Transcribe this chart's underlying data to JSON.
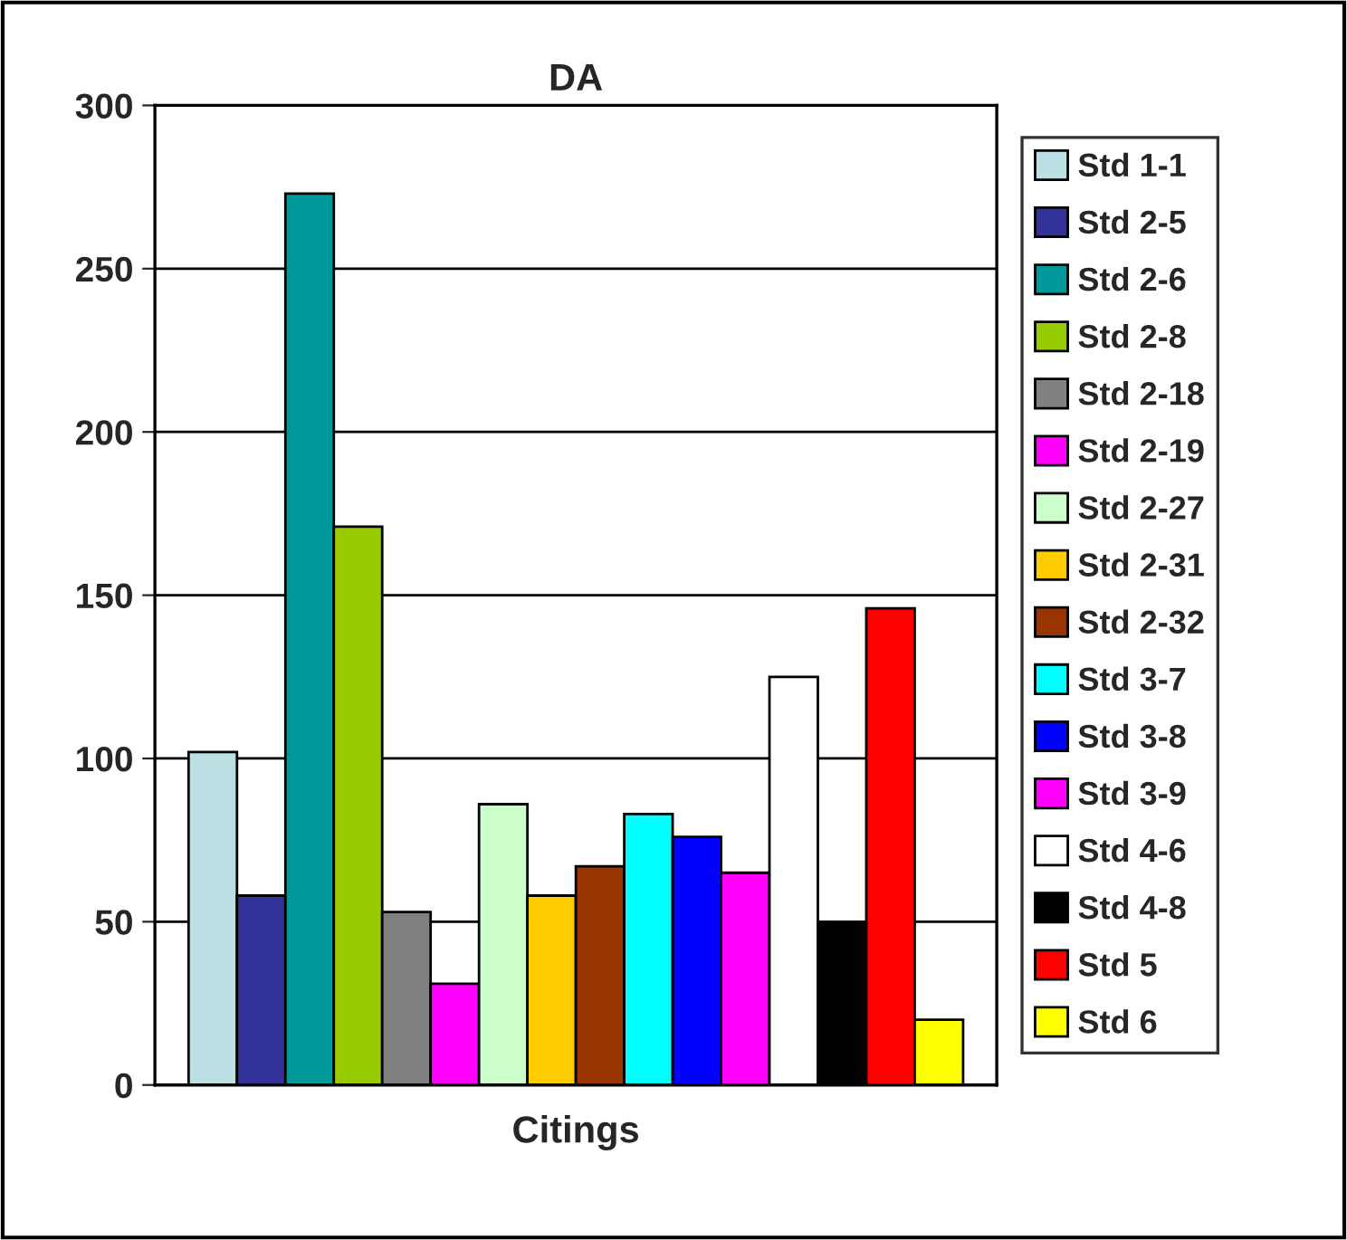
{
  "chart_data": {
    "type": "bar",
    "title": "DA",
    "categories": [
      "Citings"
    ],
    "series": [
      {
        "name": "Std 1-1",
        "color": "#bbe0e3",
        "values": [
          102
        ]
      },
      {
        "name": "Std 2-5",
        "color": "#333399",
        "values": [
          58
        ]
      },
      {
        "name": "Std 2-6",
        "color": "#009999",
        "values": [
          273
        ]
      },
      {
        "name": "Std 2-8",
        "color": "#99cc00",
        "values": [
          171
        ]
      },
      {
        "name": "Std 2-18",
        "color": "#808080",
        "values": [
          53
        ]
      },
      {
        "name": "Std 2-19",
        "color": "#ff00ff",
        "values": [
          31
        ]
      },
      {
        "name": "Std 2-27",
        "color": "#ccffcc",
        "values": [
          86
        ]
      },
      {
        "name": "Std 2-31",
        "color": "#ffcc00",
        "values": [
          58
        ]
      },
      {
        "name": "Std 2-32",
        "color": "#993300",
        "values": [
          67
        ]
      },
      {
        "name": "Std 3-7",
        "color": "#00ffff",
        "values": [
          83
        ]
      },
      {
        "name": "Std 3-8",
        "color": "#0000ff",
        "values": [
          76
        ]
      },
      {
        "name": "Std 3-9",
        "color": "#ff00ff",
        "values": [
          65
        ]
      },
      {
        "name": "Std 4-6",
        "color": "#ffffff",
        "values": [
          125
        ]
      },
      {
        "name": "Std 4-8",
        "color": "#000000",
        "values": [
          50
        ]
      },
      {
        "name": "Std 5",
        "color": "#ff0000",
        "values": [
          146
        ]
      },
      {
        "name": "Std 6",
        "color": "#ffff00",
        "values": [
          20
        ]
      }
    ],
    "ylim": [
      0,
      300
    ],
    "yticks": [
      0,
      50,
      100,
      150,
      200,
      250,
      300
    ],
    "grid": "y",
    "legend": "right"
  }
}
